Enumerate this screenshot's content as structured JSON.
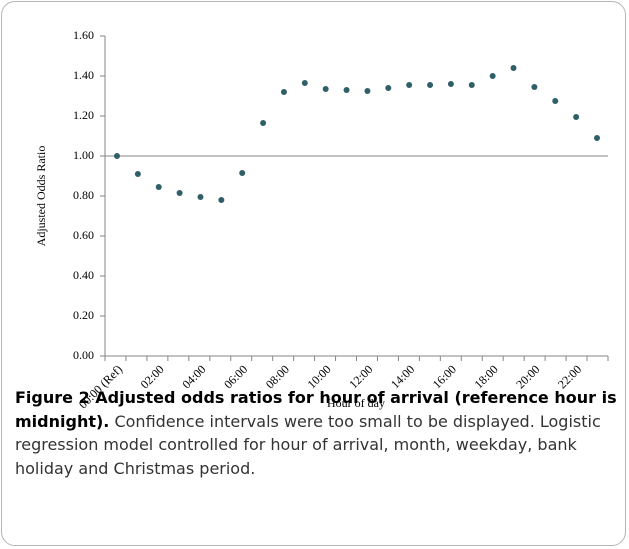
{
  "chart_data": {
    "type": "scatter",
    "y_label": "Adjusted Odds Ratio",
    "x_label": "Hour of day",
    "categories": [
      "00:00 (Ref)",
      null,
      "02:00",
      null,
      "04:00",
      null,
      "06:00",
      null,
      "08:00",
      null,
      "10:00",
      null,
      "12:00",
      null,
      "14:00",
      null,
      "16:00",
      null,
      "18:00",
      null,
      "20:00",
      null,
      "22:00",
      null
    ],
    "values": [
      1.0,
      0.91,
      0.845,
      0.815,
      0.795,
      0.78,
      0.915,
      1.165,
      1.32,
      1.365,
      1.335,
      1.33,
      1.325,
      1.34,
      1.355,
      1.355,
      1.36,
      1.355,
      1.4,
      1.44,
      1.345,
      1.275,
      1.195,
      1.09
    ],
    "color": "#2f5f68",
    "ylim": [
      0,
      1.6
    ],
    "yticks": [
      {
        "value": 0,
        "label": "0.00"
      },
      {
        "value": 0.2,
        "label": "0.20"
      },
      {
        "value": 0.4,
        "label": "0.40"
      },
      {
        "value": 0.6,
        "label": "0.60"
      },
      {
        "value": 0.8,
        "label": "0.80"
      },
      {
        "value": 1.0,
        "label": "1.00"
      },
      {
        "value": 1.2,
        "label": "1.20"
      },
      {
        "value": 1.4,
        "label": "1.40"
      },
      {
        "value": 1.6,
        "label": "1.60"
      }
    ],
    "reference_line": 1.0
  },
  "caption": {
    "title": "Figure 2 Adjusted odds ratios for hour of arrival (reference hour is midnight).",
    "text": "Confidence intervals were too small to be displayed. Logistic regression model controlled for hour of arrival, month, weekday, bank holiday and Christmas period."
  }
}
